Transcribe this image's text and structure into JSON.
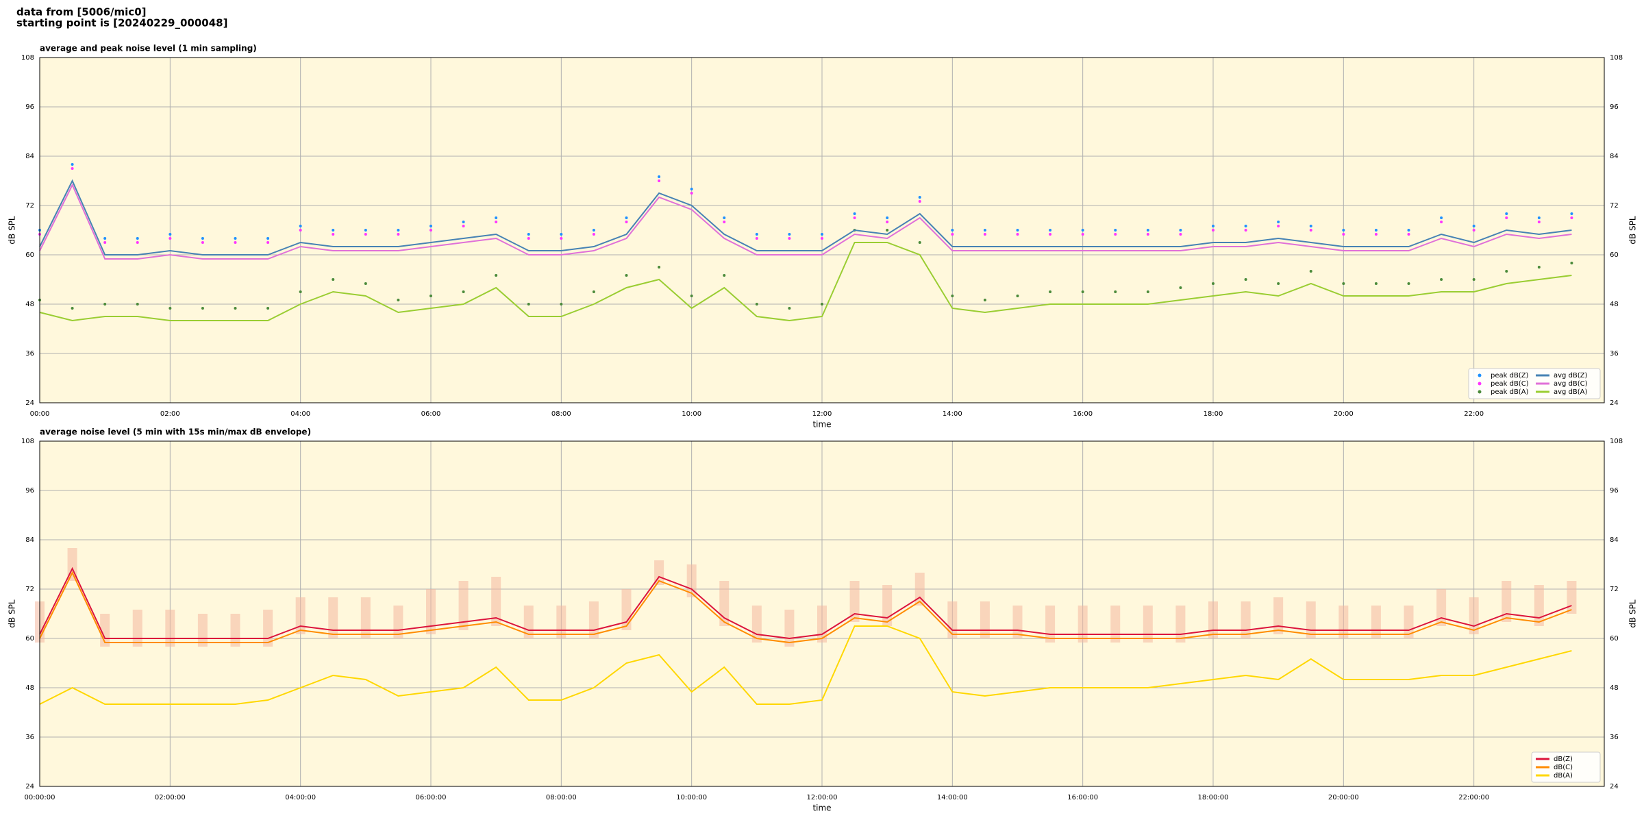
{
  "header": {
    "source": "data from [5006/mic0]",
    "start": "starting point is [20240229_000048]"
  },
  "chart_data": [
    {
      "type": "line",
      "title": "average and peak noise level (1 min sampling)",
      "xlabel": "time",
      "ylabel": "dB SPL",
      "xlim": [
        0,
        24
      ],
      "ylim": [
        24,
        108
      ],
      "yticks": [
        24,
        36,
        48,
        60,
        72,
        84,
        96,
        108
      ],
      "xticks": [
        {
          "value": 0,
          "label": "00:00"
        },
        {
          "value": 2,
          "label": "02:00"
        },
        {
          "value": 4,
          "label": "04:00"
        },
        {
          "value": 6,
          "label": "06:00"
        },
        {
          "value": 8,
          "label": "08:00"
        },
        {
          "value": 10,
          "label": "10:00"
        },
        {
          "value": 12,
          "label": "12:00"
        },
        {
          "value": 14,
          "label": "14:00"
        },
        {
          "value": 16,
          "label": "16:00"
        },
        {
          "value": 18,
          "label": "18:00"
        },
        {
          "value": 20,
          "label": "20:00"
        },
        {
          "value": 22,
          "label": "22:00"
        }
      ],
      "grid": true,
      "legend": "lower right",
      "legend_columns": 2,
      "background": "#fff8dc",
      "x": [
        0,
        0.5,
        1,
        1.5,
        2,
        2.5,
        3,
        3.5,
        4,
        4.5,
        5,
        5.5,
        6,
        6.5,
        7,
        7.5,
        8,
        8.5,
        9,
        9.5,
        10,
        10.5,
        11,
        11.5,
        12,
        12.5,
        13,
        13.5,
        14,
        14.5,
        15,
        15.5,
        16,
        16.5,
        17,
        17.5,
        18,
        18.5,
        19,
        19.5,
        20,
        20.5,
        21,
        21.5,
        22,
        22.5,
        23,
        23.5
      ],
      "series": [
        {
          "name": "peak dB(Z)",
          "type": "scatter",
          "color": "#1e90ff",
          "values": [
            66,
            82,
            64,
            64,
            65,
            64,
            64,
            64,
            67,
            66,
            66,
            66,
            67,
            68,
            69,
            65,
            65,
            66,
            69,
            79,
            76,
            69,
            65,
            65,
            65,
            70,
            69,
            74,
            66,
            66,
            66,
            66,
            66,
            66,
            66,
            66,
            67,
            67,
            68,
            67,
            66,
            66,
            66,
            69,
            67,
            70,
            69,
            70
          ]
        },
        {
          "name": "peak dB(C)",
          "type": "scatter",
          "color": "#ff33ff",
          "values": [
            65,
            81,
            63,
            63,
            64,
            63,
            63,
            63,
            66,
            65,
            65,
            65,
            66,
            67,
            68,
            64,
            64,
            65,
            68,
            78,
            75,
            68,
            64,
            64,
            64,
            69,
            68,
            73,
            65,
            65,
            65,
            65,
            65,
            65,
            65,
            65,
            66,
            66,
            67,
            66,
            65,
            65,
            65,
            68,
            66,
            69,
            68,
            69
          ]
        },
        {
          "name": "peak dB(A)",
          "type": "scatter",
          "color": "#4a8a3a",
          "values": [
            49,
            47,
            48,
            48,
            47,
            47,
            47,
            47,
            51,
            54,
            53,
            49,
            50,
            51,
            55,
            48,
            48,
            51,
            55,
            57,
            50,
            55,
            48,
            47,
            48,
            66,
            66,
            63,
            50,
            49,
            50,
            51,
            51,
            51,
            51,
            52,
            53,
            54,
            53,
            56,
            53,
            53,
            53,
            54,
            54,
            56,
            57,
            58
          ]
        },
        {
          "name": "avg dB(Z)",
          "type": "line",
          "color": "#4682b4",
          "values": [
            62,
            78,
            60,
            60,
            61,
            60,
            60,
            60,
            63,
            62,
            62,
            62,
            63,
            64,
            65,
            61,
            61,
            62,
            65,
            75,
            72,
            65,
            61,
            61,
            61,
            66,
            65,
            70,
            62,
            62,
            62,
            62,
            62,
            62,
            62,
            62,
            63,
            63,
            64,
            63,
            62,
            62,
            62,
            65,
            63,
            66,
            65,
            66
          ]
        },
        {
          "name": "avg dB(C)",
          "type": "line",
          "color": "#e070d8",
          "values": [
            61,
            77,
            59,
            59,
            60,
            59,
            59,
            59,
            62,
            61,
            61,
            61,
            62,
            63,
            64,
            60,
            60,
            61,
            64,
            74,
            71,
            64,
            60,
            60,
            60,
            65,
            64,
            69,
            61,
            61,
            61,
            61,
            61,
            61,
            61,
            61,
            62,
            62,
            63,
            62,
            61,
            61,
            61,
            64,
            62,
            65,
            64,
            65
          ]
        },
        {
          "name": "avg dB(A)",
          "type": "line",
          "color": "#9acd32",
          "values": [
            46,
            44,
            45,
            45,
            44,
            44,
            44,
            44,
            48,
            51,
            50,
            46,
            47,
            48,
            52,
            45,
            45,
            48,
            52,
            54,
            47,
            52,
            45,
            44,
            45,
            63,
            63,
            60,
            47,
            46,
            47,
            48,
            48,
            48,
            48,
            49,
            50,
            51,
            50,
            53,
            50,
            50,
            50,
            51,
            51,
            53,
            54,
            55
          ]
        }
      ]
    },
    {
      "type": "line",
      "title": "average noise level (5 min with 15s min/max dB envelope)",
      "xlabel": "time",
      "ylabel": "dB SPL",
      "xlim": [
        0,
        24
      ],
      "ylim": [
        24,
        108
      ],
      "yticks": [
        24,
        36,
        48,
        60,
        72,
        84,
        96,
        108
      ],
      "xticks": [
        {
          "value": 0,
          "label": "00:00:00"
        },
        {
          "value": 2,
          "label": "02:00:00"
        },
        {
          "value": 4,
          "label": "04:00:00"
        },
        {
          "value": 6,
          "label": "06:00:00"
        },
        {
          "value": 8,
          "label": "08:00:00"
        },
        {
          "value": 10,
          "label": "10:00:00"
        },
        {
          "value": 12,
          "label": "12:00:00"
        },
        {
          "value": 14,
          "label": "14:00:00"
        },
        {
          "value": 16,
          "label": "16:00:00"
        },
        {
          "value": 18,
          "label": "18:00:00"
        },
        {
          "value": 20,
          "label": "20:00:00"
        },
        {
          "value": 22,
          "label": "22:00:00"
        }
      ],
      "grid": true,
      "legend": "lower right",
      "legend_columns": 1,
      "background": "#fff8dc",
      "envelope_color": "#f4b8a0",
      "x": [
        0,
        0.5,
        1,
        1.5,
        2,
        2.5,
        3,
        3.5,
        4,
        4.5,
        5,
        5.5,
        6,
        6.5,
        7,
        7.5,
        8,
        8.5,
        9,
        9.5,
        10,
        10.5,
        11,
        11.5,
        12,
        12.5,
        13,
        13.5,
        14,
        14.5,
        15,
        15.5,
        16,
        16.5,
        17,
        17.5,
        18,
        18.5,
        19,
        19.5,
        20,
        20.5,
        21,
        21.5,
        22,
        22.5,
        23,
        23.5
      ],
      "series": [
        {
          "name": "dB(Z)",
          "type": "line",
          "color": "#dc143c",
          "values": [
            61,
            77,
            60,
            60,
            60,
            60,
            60,
            60,
            63,
            62,
            62,
            62,
            63,
            64,
            65,
            62,
            62,
            62,
            64,
            75,
            72,
            65,
            61,
            60,
            61,
            66,
            65,
            70,
            62,
            62,
            62,
            61,
            61,
            61,
            61,
            61,
            62,
            62,
            63,
            62,
            62,
            62,
            62,
            65,
            63,
            66,
            65,
            68
          ],
          "envelope_max": [
            69,
            82,
            66,
            67,
            67,
            66,
            66,
            67,
            70,
            70,
            70,
            68,
            72,
            74,
            75,
            68,
            68,
            69,
            72,
            79,
            78,
            74,
            68,
            67,
            68,
            74,
            73,
            76,
            69,
            69,
            68,
            68,
            68,
            68,
            68,
            68,
            69,
            69,
            70,
            69,
            68,
            68,
            68,
            72,
            70,
            74,
            73,
            74
          ],
          "envelope_min": [
            59,
            74,
            58,
            58,
            58,
            58,
            58,
            58,
            61,
            60,
            60,
            60,
            61,
            62,
            63,
            60,
            60,
            60,
            62,
            73,
            70,
            63,
            59,
            58,
            59,
            64,
            63,
            68,
            60,
            60,
            60,
            59,
            59,
            59,
            59,
            59,
            60,
            60,
            61,
            60,
            60,
            60,
            60,
            63,
            61,
            64,
            63,
            66
          ]
        },
        {
          "name": "dB(C)",
          "type": "line",
          "color": "#ff8c00",
          "values": [
            60,
            76,
            59,
            59,
            59,
            59,
            59,
            59,
            62,
            61,
            61,
            61,
            62,
            63,
            64,
            61,
            61,
            61,
            63,
            74,
            71,
            64,
            60,
            59,
            60,
            65,
            64,
            69,
            61,
            61,
            61,
            60,
            60,
            60,
            60,
            60,
            61,
            61,
            62,
            61,
            61,
            61,
            61,
            64,
            62,
            65,
            64,
            67
          ]
        },
        {
          "name": "dB(A)",
          "type": "line",
          "color": "#ffd700",
          "values": [
            44,
            48,
            44,
            44,
            44,
            44,
            44,
            45,
            48,
            51,
            50,
            46,
            47,
            48,
            53,
            45,
            45,
            48,
            54,
            56,
            47,
            53,
            44,
            44,
            45,
            63,
            63,
            60,
            47,
            46,
            47,
            48,
            48,
            48,
            48,
            49,
            50,
            51,
            50,
            55,
            50,
            50,
            50,
            51,
            51,
            53,
            55,
            57
          ]
        }
      ]
    }
  ]
}
